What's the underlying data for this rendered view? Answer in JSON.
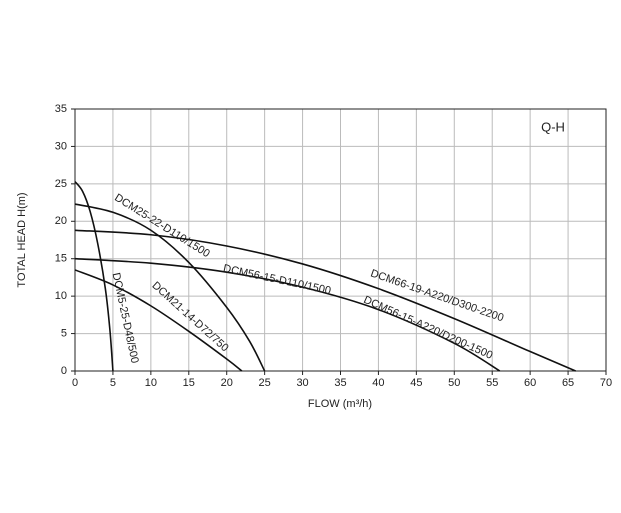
{
  "chart_data": {
    "type": "line",
    "annotation_title": "Q-H",
    "x_label": "FLOW (m³/h)",
    "y_label": "TOTAL HEAD  H(m)",
    "xlim": [
      0,
      70
    ],
    "ylim": [
      0,
      35
    ],
    "xticks": [
      0,
      5,
      10,
      15,
      20,
      25,
      30,
      35,
      40,
      45,
      50,
      55,
      60,
      65,
      70
    ],
    "yticks": [
      0,
      5,
      10,
      15,
      20,
      25,
      30,
      35
    ],
    "grid": true,
    "series": [
      {
        "name": "DCM5-25-D48/500",
        "color": "#111111",
        "x": [
          0,
          1,
          2,
          3,
          4,
          4.6,
          5
        ],
        "values": [
          25.3,
          24,
          21.3,
          17,
          11,
          5.5,
          0
        ]
      },
      {
        "name": "DCM25-22-D110/1500",
        "color": "#111111",
        "x": [
          0,
          5,
          10,
          15,
          20,
          23,
          25
        ],
        "values": [
          22.3,
          21.2,
          18.8,
          14.5,
          8.5,
          4,
          0
        ]
      },
      {
        "name": "DCM21-14-D72/750",
        "color": "#111111",
        "x": [
          0,
          5,
          10,
          15,
          20,
          22
        ],
        "values": [
          13.5,
          11.5,
          8.7,
          5.3,
          1.6,
          0
        ]
      },
      {
        "name": "DCM66-19-A220/D300-2200",
        "color": "#111111",
        "x": [
          0,
          10,
          20,
          30,
          40,
          50,
          60,
          66
        ],
        "values": [
          18.8,
          18.2,
          16.7,
          14.3,
          11,
          7,
          2.6,
          0
        ]
      },
      {
        "name": "DCM56-15-A220/D200-1500",
        "color": "#111111",
        "x": [
          0,
          10,
          20,
          30,
          40,
          50,
          56
        ],
        "values": [
          15,
          14.4,
          13.2,
          11.2,
          8.2,
          3.7,
          0
        ]
      }
    ],
    "annotations": [
      "DCM56-15-D110/1500"
    ]
  }
}
